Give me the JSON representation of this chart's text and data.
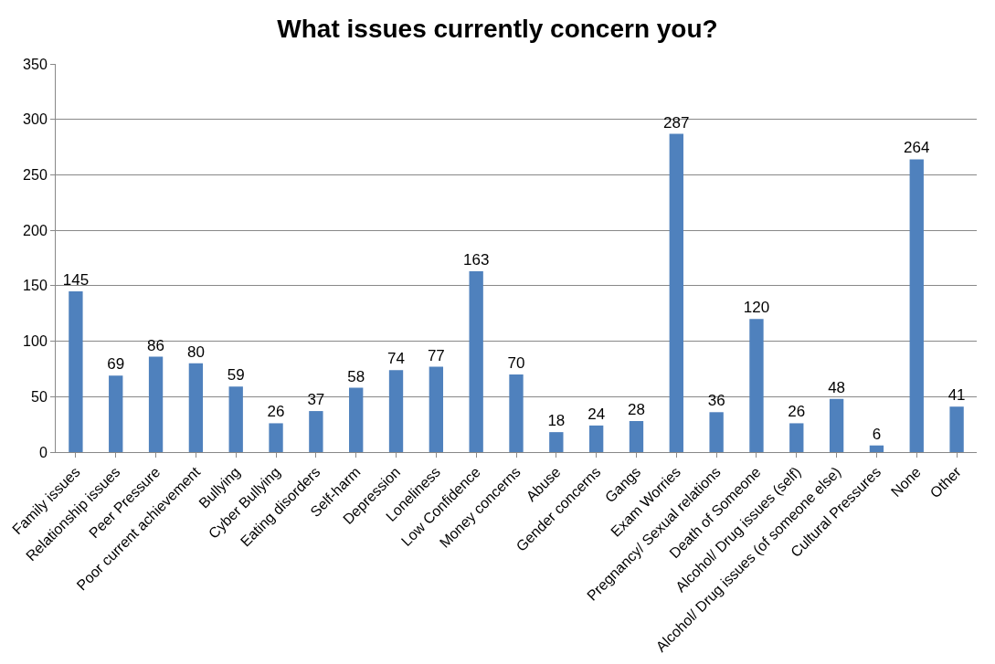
{
  "chart_data": {
    "type": "bar",
    "title": "What issues currently concern you?",
    "categories": [
      "Family issues",
      "Relationship issues",
      "Peer Pressure",
      "Poor current achievement",
      "Bullying",
      "Cyber Bullying",
      "Eating disorders",
      "Self-harm",
      "Depression",
      "Loneliness",
      "Low Confidence",
      "Money concerns",
      "Abuse",
      "Gender concerns",
      "Gangs",
      "Exam Worries",
      "Pregnancy/ Sexual relations",
      "Death of Someone",
      "Alcohol/ Drug issues (self)",
      "Alcohol/ Drug issues (of someone else)",
      "Cultural Pressures",
      "None",
      "Other"
    ],
    "values": [
      145,
      69,
      86,
      80,
      59,
      26,
      37,
      58,
      74,
      77,
      163,
      70,
      18,
      24,
      28,
      287,
      36,
      120,
      26,
      48,
      6,
      264,
      41
    ],
    "color": "#4f81bd",
    "ylim": [
      0,
      350
    ],
    "yticks": [
      0,
      50,
      100,
      150,
      200,
      250,
      300,
      350
    ],
    "grid": "y",
    "data_labels": true,
    "legend": false
  }
}
